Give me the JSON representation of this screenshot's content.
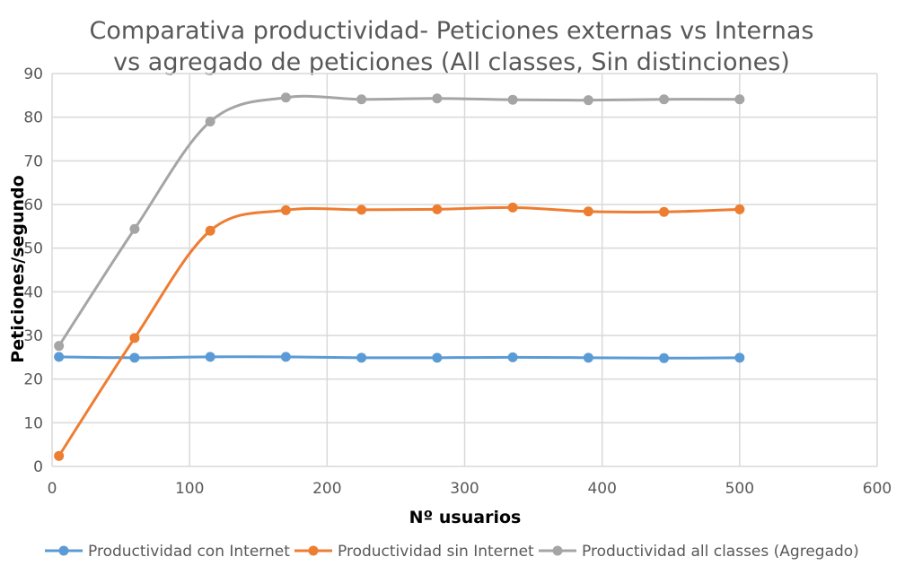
{
  "chart_data": {
    "type": "line",
    "title": [
      "Comparativa productividad- Peticiones externas vs Internas",
      "vs agregado de peticiones (All classes, Sin distinciones)"
    ],
    "xlabel": "Nº usuarios",
    "ylabel": "Peticiones/segundo",
    "xlim": [
      0,
      600
    ],
    "ylim": [
      0,
      90
    ],
    "xticks": [
      0,
      100,
      200,
      300,
      400,
      500,
      600
    ],
    "yticks": [
      0,
      10,
      20,
      30,
      40,
      50,
      60,
      70,
      80,
      90
    ],
    "grid": true,
    "legend_position": "bottom",
    "smooth": true,
    "x": [
      5,
      60,
      115,
      170,
      225,
      280,
      335,
      390,
      445,
      500
    ],
    "series": [
      {
        "name": "Productividad con Internet",
        "color": "#5b9bd5",
        "values": [
          25.1,
          24.9,
          25.1,
          25.1,
          24.9,
          24.9,
          25.0,
          24.9,
          24.8,
          24.9
        ]
      },
      {
        "name": "Productividad sin Internet",
        "color": "#ed7d31",
        "values": [
          2.4,
          29.4,
          54.0,
          58.7,
          58.8,
          58.9,
          59.3,
          58.4,
          58.3,
          58.9
        ]
      },
      {
        "name": "Productividad all classes (Agregado)",
        "color": "#a5a5a5",
        "values": [
          27.6,
          54.4,
          79.0,
          84.5,
          84.1,
          84.3,
          84.0,
          83.9,
          84.1,
          84.1
        ]
      }
    ]
  }
}
